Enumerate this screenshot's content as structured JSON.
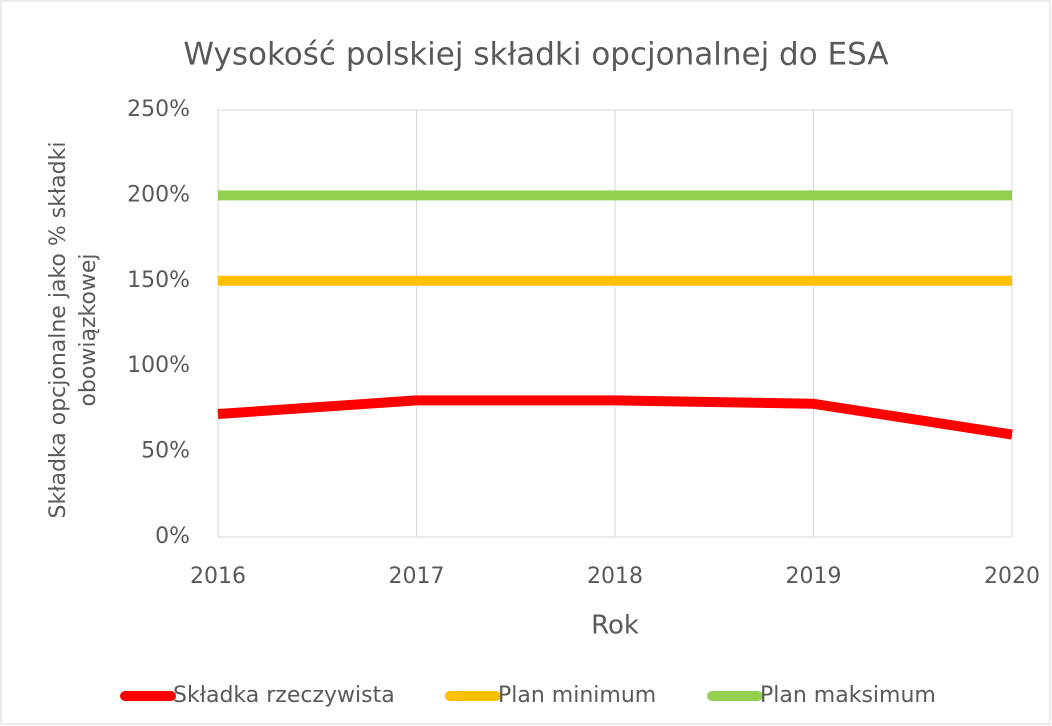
{
  "chart_data": {
    "type": "line",
    "title": "Wysokość polskiej składki opcjonalnej do ESA",
    "xlabel": "Rok",
    "ylabel": [
      "Składka opcjonalne jako % składki",
      "obowiązkowej"
    ],
    "x": [
      2016,
      2017,
      2018,
      2019,
      2020
    ],
    "xlim": [
      2016,
      2020
    ],
    "xticks": [
      2016,
      2017,
      2018,
      2019,
      2020
    ],
    "ylim": [
      0,
      250
    ],
    "yticks": [
      {
        "value": 0,
        "label": "0%"
      },
      {
        "value": 50,
        "label": "50%"
      },
      {
        "value": 100,
        "label": "100%"
      },
      {
        "value": 150,
        "label": "150%"
      },
      {
        "value": 200,
        "label": "200%"
      },
      {
        "value": 250,
        "label": "250%"
      }
    ],
    "grid": "x",
    "legend": "bottom",
    "series": [
      {
        "name": "Składka rzeczywista",
        "color": "#ff0000",
        "values": [
          72,
          80,
          80,
          78,
          60
        ]
      },
      {
        "name": "Plan minimum",
        "color": "#ffc000",
        "values": [
          150,
          150,
          150,
          150,
          150
        ]
      },
      {
        "name": "Plan maksimum",
        "color": "#92d050",
        "values": [
          200,
          200,
          200,
          200,
          200
        ]
      }
    ]
  }
}
